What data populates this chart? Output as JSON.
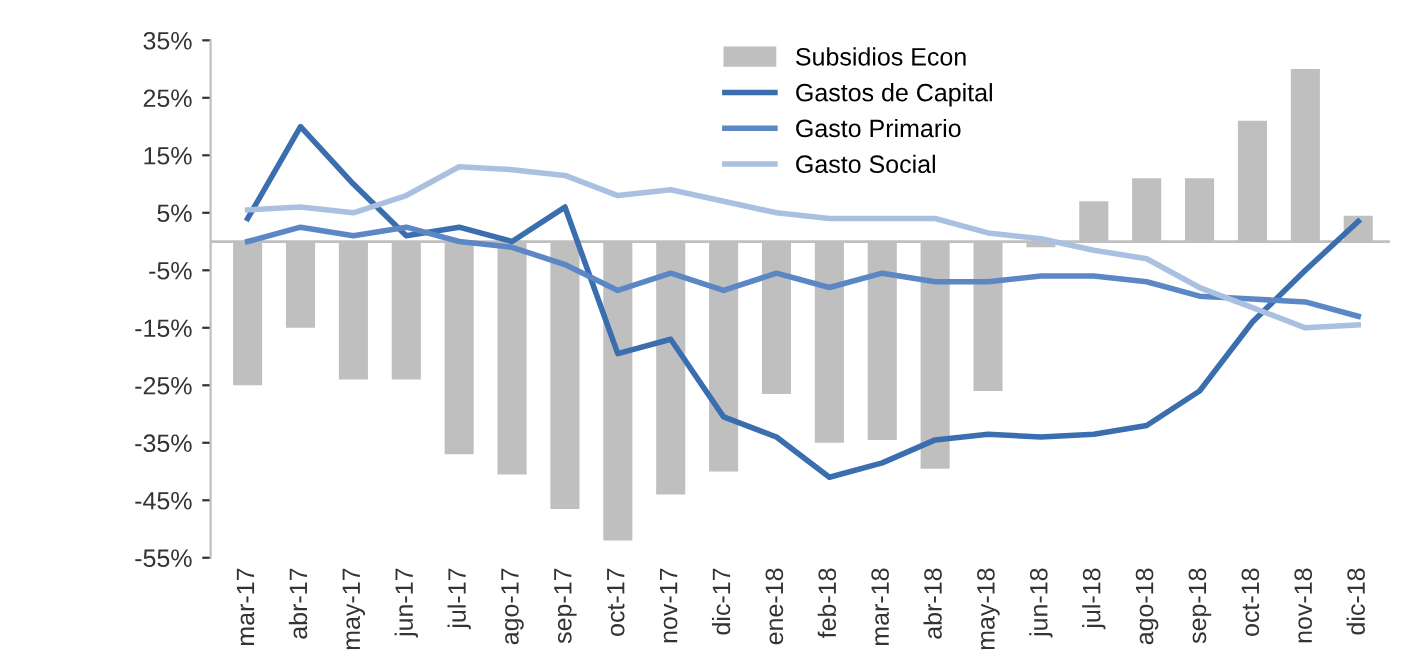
{
  "chart_data": {
    "type": "bar",
    "categories": [
      "mar-17",
      "abr-17",
      "may-17",
      "jun-17",
      "jul-17",
      "ago-17",
      "sep-17",
      "oct-17",
      "nov-17",
      "dic-17",
      "ene-18",
      "feb-18",
      "mar-18",
      "abr-18",
      "may-18",
      "jun-18",
      "jul-18",
      "ago-18",
      "sep-18",
      "oct-18",
      "nov-18",
      "dic-18"
    ],
    "series": [
      {
        "name": "Subsidios Econ",
        "color": "#bfbfbf",
        "values": [
          -25,
          -15,
          -24,
          -24,
          -37,
          -40.5,
          -46.5,
          -52,
          -44,
          -40,
          -26.5,
          -35,
          -34.5,
          -39.5,
          -26,
          -1,
          7,
          11,
          11,
          21,
          30,
          4.5
        ]
      },
      {
        "name": "Gastos de Capital",
        "type": "line",
        "color": "#3a6eae",
        "values": [
          4,
          20,
          10,
          1,
          2.5,
          0,
          6,
          -19.5,
          -17,
          -30.5,
          -34,
          -41,
          -38.5,
          -34.5,
          -33.5,
          -34,
          -33.5,
          -32,
          -26,
          -14,
          -5,
          3.5
        ]
      },
      {
        "name": "Gasto Primario",
        "type": "line",
        "color": "#5b87c5",
        "values": [
          0,
          2.5,
          1,
          2.5,
          0,
          -1,
          -4,
          -8.5,
          -5.5,
          -8.5,
          -5.5,
          -8,
          -5.5,
          -7,
          -7,
          -6,
          -6,
          -7,
          -9.5,
          -10,
          -10.5,
          -13
        ]
      },
      {
        "name": "Gasto Social",
        "type": "line",
        "color": "#a9c0e0",
        "values": [
          5.5,
          6,
          5,
          8,
          13,
          12.5,
          11.5,
          8,
          9,
          7,
          5,
          4,
          4,
          4,
          1.5,
          0.5,
          -1.5,
          -3,
          -8,
          -11.5,
          -15,
          -14.5
        ]
      }
    ],
    "ylim": [
      -55,
      35
    ],
    "yticks": [
      {
        "value": 35,
        "label": "35%"
      },
      {
        "value": 25,
        "label": "25%"
      },
      {
        "value": 15,
        "label": "15%"
      },
      {
        "value": 5,
        "label": "5%"
      },
      {
        "value": -5,
        "label": "-5%"
      },
      {
        "value": -15,
        "label": "-15%"
      },
      {
        "value": -25,
        "label": "-25%"
      },
      {
        "value": -35,
        "label": "-35%"
      },
      {
        "value": -45,
        "label": "-45%"
      },
      {
        "value": -55,
        "label": "-55%"
      }
    ],
    "grid": false,
    "legend": "top",
    "line_style": "solid",
    "marker": "none"
  }
}
